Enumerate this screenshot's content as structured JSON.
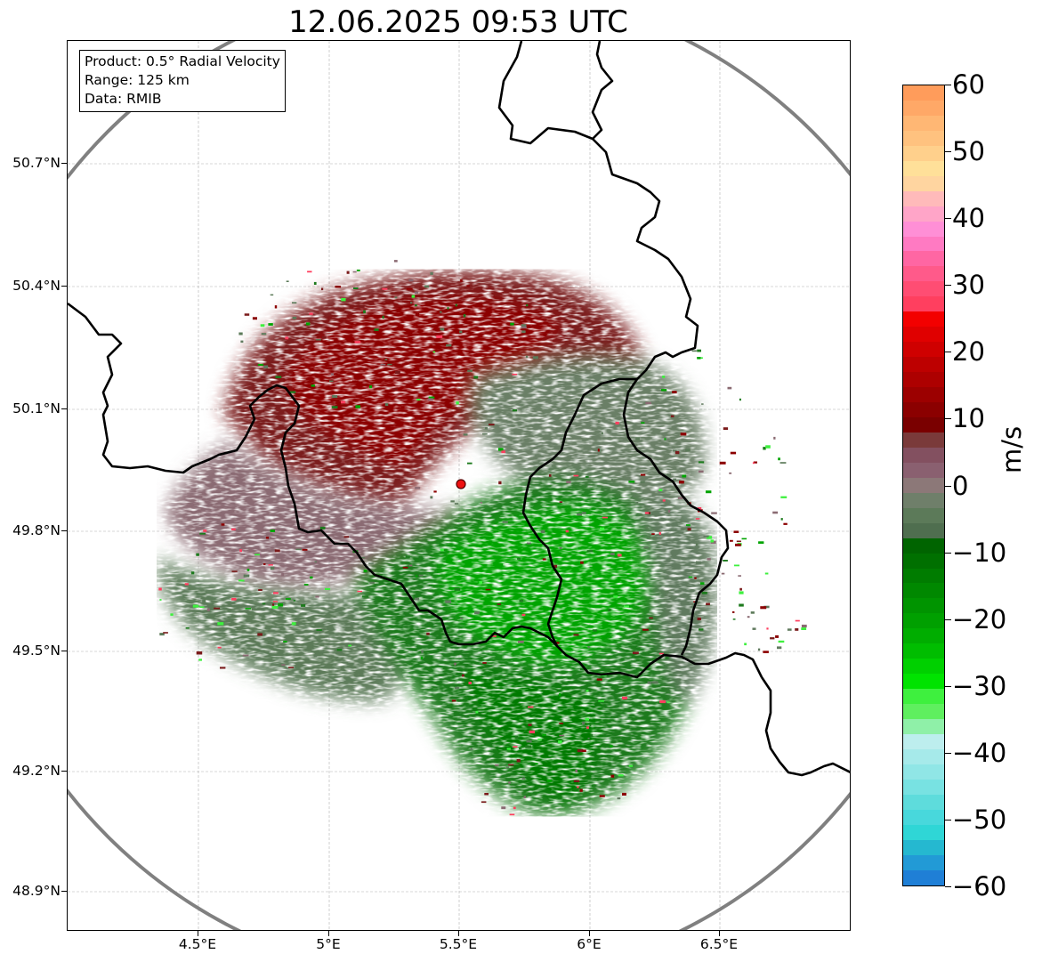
{
  "title": "12.06.2025 09:53 UTC",
  "info": {
    "product": "Product: 0.5° Radial Velocity",
    "range": "Range: 125 km",
    "data": "Data: RMIB"
  },
  "map": {
    "lon_range": [
      4.0,
      7.0
    ],
    "lat_range": [
      48.8,
      50.99
    ],
    "radar_site": {
      "lon": 5.505,
      "lat": 49.914
    },
    "range_ring_km": 125,
    "y_ticks": [
      "50.7°N",
      "50.4°N",
      "50.1°N",
      "49.8°N",
      "49.5°N",
      "49.2°N",
      "48.9°N"
    ],
    "x_ticks": [
      "4.5°E",
      "5°E",
      "5.5°E",
      "6°E",
      "6.5°E"
    ],
    "gridlines": true
  },
  "colorbar": {
    "label": "m/s",
    "ticks": [
      "60",
      "50",
      "40",
      "30",
      "20",
      "10",
      "0",
      "−10",
      "−20",
      "−30",
      "−40",
      "−50",
      "−60"
    ],
    "range": [
      -60,
      60
    ],
    "colors": [
      "#ff9c5b",
      "#ffa867",
      "#ffb774",
      "#ffc27f",
      "#ffd08c",
      "#ffe099",
      "#ffd5a0",
      "#ffbaba",
      "#ffa5c8",
      "#ff8fd6",
      "#ff7ac2",
      "#ff66a3",
      "#ff5a8a",
      "#ff4d73",
      "#ff3f5f",
      "#f30000",
      "#e00000",
      "#cf0000",
      "#bd0000",
      "#ad0000",
      "#9c0000",
      "#8b0000",
      "#7a0000",
      "#7a3a3a",
      "#835060",
      "#8a6070",
      "#8c7878",
      "#6f7f6a",
      "#5c7a59",
      "#4f6e4f",
      "#006400",
      "#007000",
      "#007c00",
      "#008800",
      "#009400",
      "#00a000",
      "#00ad00",
      "#00bd00",
      "#00d000",
      "#00e300",
      "#3ef03e",
      "#5fef5f",
      "#8ff0a8",
      "#bdeeee",
      "#a6eaea",
      "#90e6e6",
      "#78e2e2",
      "#5edcdc",
      "#48d8dc",
      "#2fd6d6",
      "#25b8d0",
      "#229ad6",
      "#1f7fd6"
    ]
  }
}
